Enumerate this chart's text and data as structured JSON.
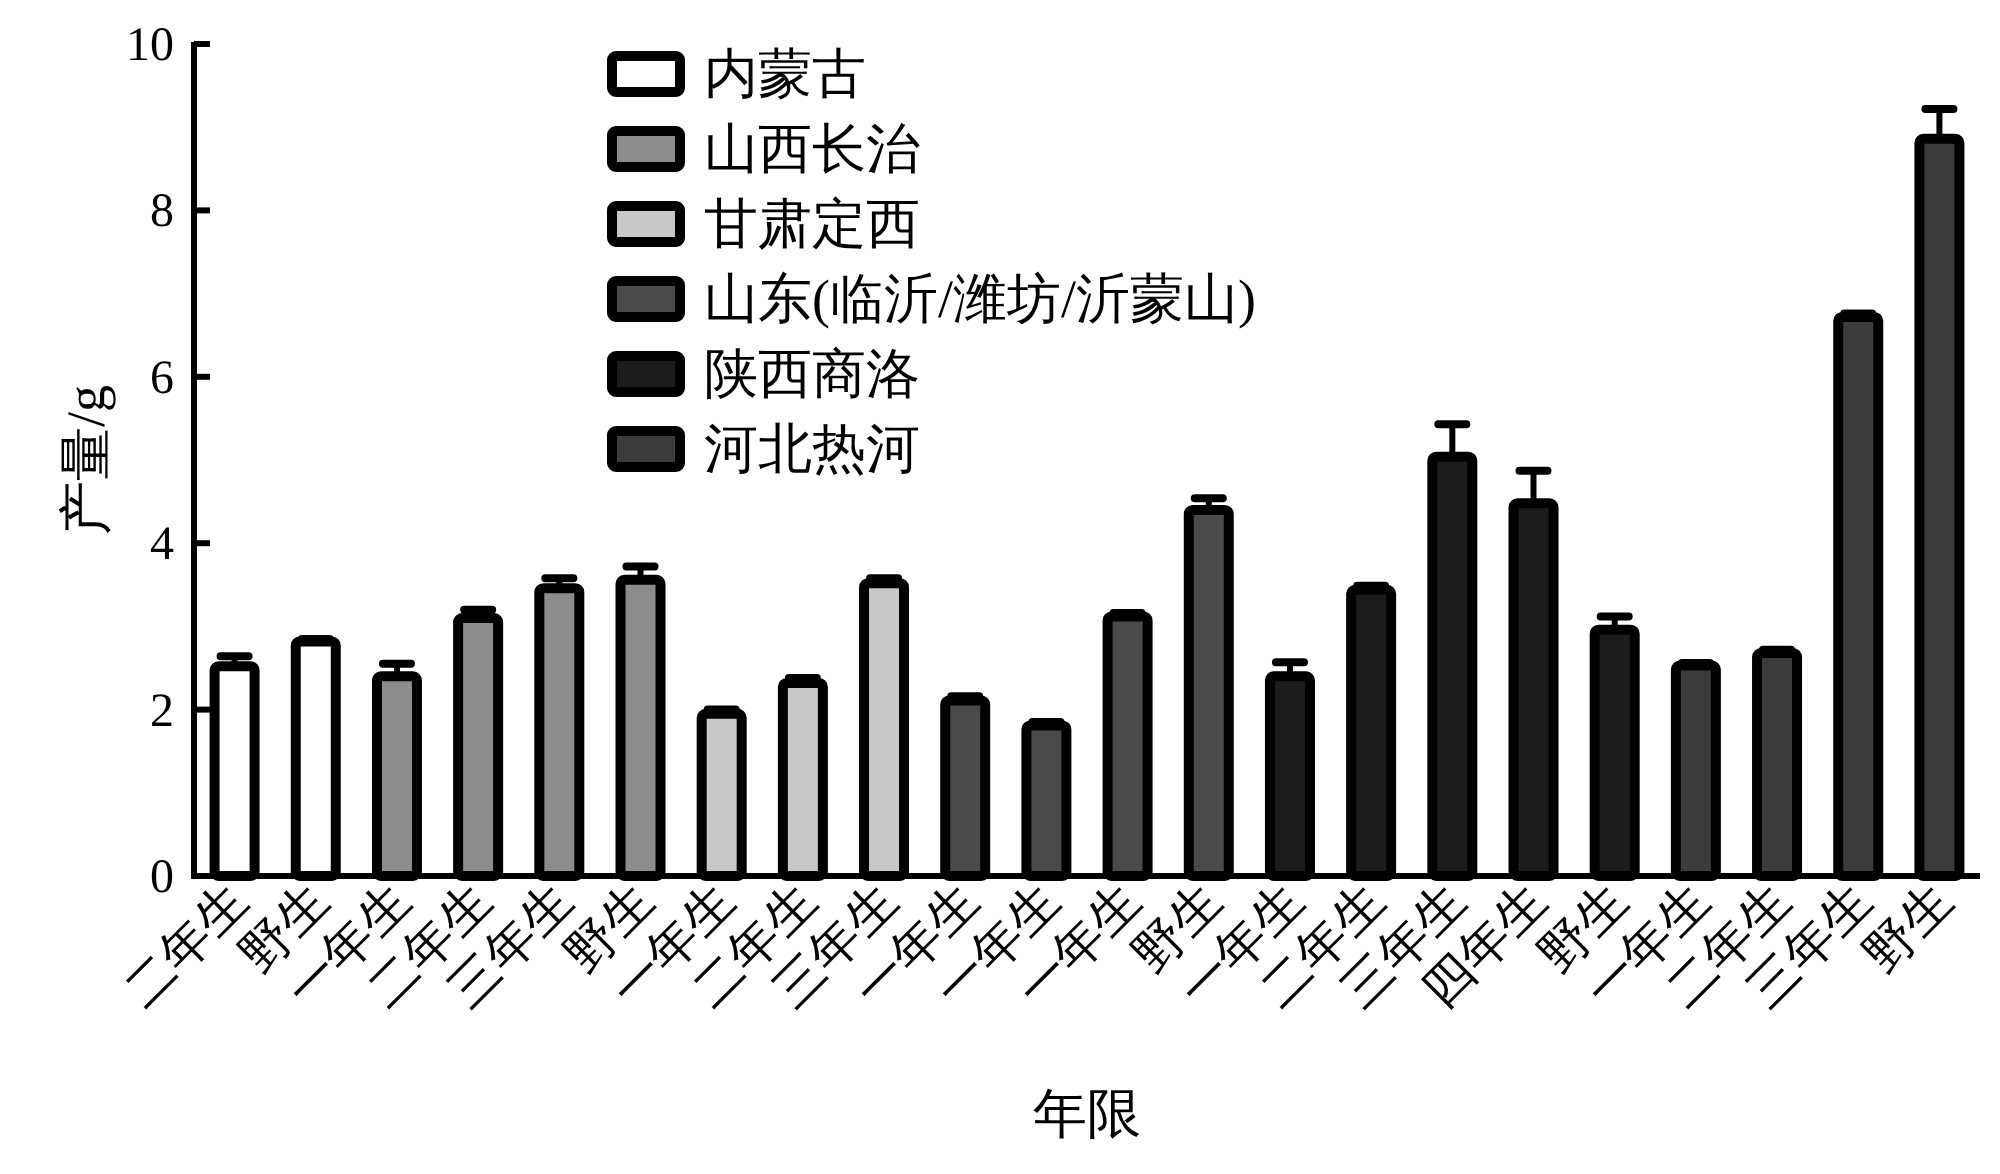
{
  "chart_data": {
    "type": "bar",
    "xlabel": "年限",
    "ylabel": "产量/g",
    "categories": [
      "二年生",
      "野生",
      "一年生",
      "二年生",
      "三年生",
      "野生",
      "一年生",
      "二年生",
      "三年生",
      "一年生",
      "一年生",
      "一年生",
      "野生",
      "一年生",
      "二年生",
      "三年生",
      "四年生",
      "野生",
      "一年生",
      "二年生",
      "三年生",
      "野生"
    ],
    "series": [
      {
        "name": "内蒙古",
        "color": "#ffffff",
        "values": [
          2.52,
          2.82,
          null,
          null,
          null,
          null,
          null,
          null,
          null,
          null,
          null,
          null,
          null,
          null,
          null,
          null,
          null,
          null,
          null,
          null,
          null,
          null
        ],
        "errors": [
          0.12,
          0.03,
          null,
          null,
          null,
          null,
          null,
          null,
          null,
          null,
          null,
          null,
          null,
          null,
          null,
          null,
          null,
          null,
          null,
          null,
          null,
          null
        ]
      },
      {
        "name": "山西长治",
        "color": "#8c8c8c",
        "values": [
          null,
          null,
          2.4,
          3.1,
          3.46,
          3.56,
          null,
          null,
          null,
          null,
          null,
          null,
          null,
          null,
          null,
          null,
          null,
          null,
          null,
          null,
          null,
          null
        ],
        "errors": [
          null,
          null,
          0.15,
          0.1,
          0.12,
          0.16,
          null,
          null,
          null,
          null,
          null,
          null,
          null,
          null,
          null,
          null,
          null,
          null,
          null,
          null,
          null,
          null
        ]
      },
      {
        "name": "甘肃定西",
        "color": "#c8c8c8",
        "values": [
          null,
          null,
          null,
          null,
          null,
          null,
          1.95,
          2.32,
          3.52,
          null,
          null,
          null,
          null,
          null,
          null,
          null,
          null,
          null,
          null,
          null,
          null,
          null
        ],
        "errors": [
          null,
          null,
          null,
          null,
          null,
          null,
          0.05,
          0.06,
          0.06,
          null,
          null,
          null,
          null,
          null,
          null,
          null,
          null,
          null,
          null,
          null,
          null,
          null
        ]
      },
      {
        "name": "山东(临沂/潍坊/沂蒙山)",
        "color": "#4a4a4a",
        "values": [
          null,
          null,
          null,
          null,
          null,
          null,
          null,
          null,
          null,
          2.11,
          1.81,
          3.12,
          4.4,
          null,
          null,
          null,
          null,
          null,
          null,
          null,
          null,
          null
        ],
        "errors": [
          null,
          null,
          null,
          null,
          null,
          null,
          null,
          null,
          null,
          0.05,
          0.04,
          0.04,
          0.14,
          null,
          null,
          null,
          null,
          null,
          null,
          null,
          null,
          null
        ]
      },
      {
        "name": "陕西商洛",
        "color": "#1c1c1c",
        "values": [
          null,
          null,
          null,
          null,
          null,
          null,
          null,
          null,
          null,
          null,
          null,
          null,
          null,
          2.4,
          3.44,
          5.04,
          4.48,
          2.96,
          null,
          null,
          null,
          null
        ],
        "errors": [
          null,
          null,
          null,
          null,
          null,
          null,
          null,
          null,
          null,
          null,
          null,
          null,
          null,
          0.17,
          0.05,
          0.39,
          0.39,
          0.16,
          null,
          null,
          null,
          null
        ]
      },
      {
        "name": "河北热河",
        "color": "#3c3c3c",
        "values": [
          null,
          null,
          null,
          null,
          null,
          null,
          null,
          null,
          null,
          null,
          null,
          null,
          null,
          null,
          null,
          null,
          null,
          null,
          2.53,
          2.68,
          6.72,
          8.86
        ],
        "errors": [
          null,
          null,
          null,
          null,
          null,
          null,
          null,
          null,
          null,
          null,
          null,
          null,
          null,
          null,
          null,
          null,
          null,
          null,
          0.03,
          0.04,
          0.04,
          0.36
        ]
      }
    ],
    "ylim": [
      0,
      10
    ],
    "yticks": [
      0,
      2,
      4,
      6,
      8,
      10
    ],
    "grid": false,
    "legend": "top left"
  }
}
